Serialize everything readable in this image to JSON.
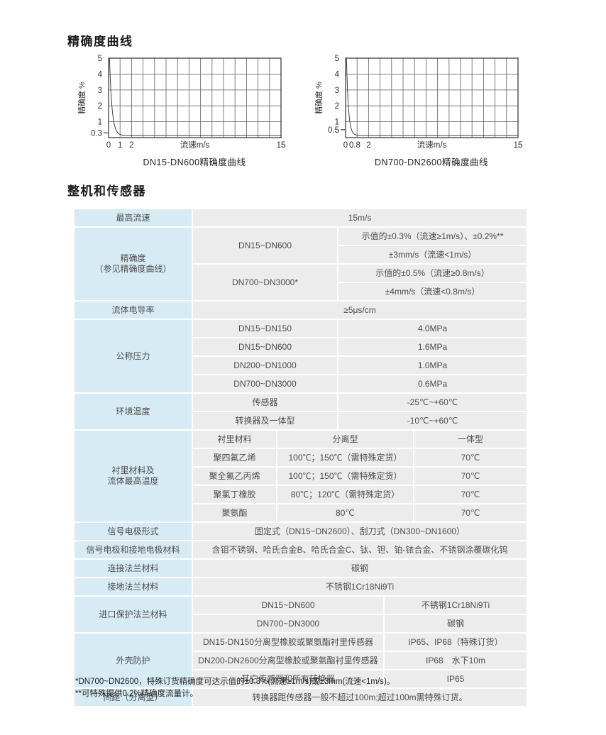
{
  "page": {
    "section1_title": "精确度曲线",
    "section2_title": "整机和传感器",
    "footnotes": [
      "*DN700~DN2600，特殊订货精确度可达示值的±0.3%(流速≥1m/s)或±3mm(流速<1m/s)。",
      "**可特殊提供0.2%精确度流量计。"
    ]
  },
  "colors": {
    "label_bg": "#d7ebf5",
    "cell_bg": "#ececec",
    "grid_line": "#6e6e6e",
    "axis_line": "#3f3f3f",
    "text": "#4d4d4d"
  },
  "chart_data": [
    {
      "type": "line",
      "title": "DN15-DN600精确度曲线",
      "xlabel": "流速m/s",
      "ylabel": "精确度  %",
      "xlim": [
        0,
        15
      ],
      "ylim": [
        0,
        5
      ],
      "grid": true,
      "x_ticks": [
        {
          "v": 0,
          "label": "0"
        },
        {
          "v": 1,
          "label": "1"
        },
        {
          "v": 2,
          "label": "2"
        },
        {
          "v": 15,
          "label": "15"
        }
      ],
      "y_ticks": [
        {
          "v": 5,
          "label": "5"
        },
        {
          "v": 4,
          "label": "4"
        },
        {
          "v": 3,
          "label": "3"
        },
        {
          "v": 2,
          "label": "2"
        },
        {
          "v": 1,
          "label": "1"
        },
        {
          "v": 0.3,
          "label": "0.3",
          "tick_only": true
        }
      ],
      "curve": {
        "shape": "decay",
        "start_x": 0.08,
        "knee_x": 1.0,
        "flat_y": 0.3
      }
    },
    {
      "type": "line",
      "title": "DN700-DN2600精确度曲线",
      "xlabel": "流速m/s",
      "ylabel": "精确度  %",
      "xlim": [
        0,
        15
      ],
      "ylim": [
        0,
        5
      ],
      "grid": true,
      "x_ticks": [
        {
          "v": 0,
          "label": "0"
        },
        {
          "v": 0.8,
          "label": "0.8"
        },
        {
          "v": 2,
          "label": "2"
        },
        {
          "v": 15,
          "label": "15"
        }
      ],
      "y_ticks": [
        {
          "v": 5,
          "label": "5"
        },
        {
          "v": 4,
          "label": "4"
        },
        {
          "v": 3,
          "label": "3"
        },
        {
          "v": 2,
          "label": "2"
        },
        {
          "v": 1,
          "label": "1"
        },
        {
          "v": 0.5,
          "label": "0.5",
          "tick_only": true
        }
      ],
      "curve": {
        "shape": "decay",
        "start_x": 0.08,
        "knee_x": 0.8,
        "flat_y": 0.5
      }
    }
  ],
  "table": {
    "groups": [
      {
        "label": "最高流速",
        "rows": [
          [
            {
              "t": "15m/s",
              "s": 5
            }
          ]
        ]
      },
      {
        "label": "精确度\n（参见精确度曲线）",
        "rows": [
          [
            {
              "t": "DN15~DN600",
              "s": 2,
              "r": 2
            },
            {
              "t": "示值的±0.3%（流速≥1m/s）、±0.2%**",
              "s": 3
            }
          ],
          [
            {
              "t": "±3mm/s（流速<1m/s）",
              "s": 3
            }
          ],
          [
            {
              "t": "DN700~DN3000*",
              "s": 2,
              "r": 2
            },
            {
              "t": "示值的±0.5%（流速≥0.8m/s）",
              "s": 3
            }
          ],
          [
            {
              "t": "±4mm/s（流速<0.8m/s）",
              "s": 3
            }
          ]
        ]
      },
      {
        "label": "流体电导率",
        "rows": [
          [
            {
              "t": "≥5μs/cm",
              "s": 5
            }
          ]
        ]
      },
      {
        "label": "公称压力",
        "rows": [
          [
            {
              "t": "DN15~DN150",
              "s": 2
            },
            {
              "t": "4.0MPa",
              "s": 3
            }
          ],
          [
            {
              "t": "DN15~DN600",
              "s": 2
            },
            {
              "t": "1.6MPa",
              "s": 3
            }
          ],
          [
            {
              "t": "DN200~DN1000",
              "s": 2
            },
            {
              "t": "1.0MPa",
              "s": 3
            }
          ],
          [
            {
              "t": "DN700~DN3000",
              "s": 2
            },
            {
              "t": "0.6MPa",
              "s": 3
            }
          ]
        ]
      },
      {
        "label": "环境温度",
        "rows": [
          [
            {
              "t": "传感器",
              "s": 2
            },
            {
              "t": "-25℃~+60℃",
              "s": 3
            }
          ],
          [
            {
              "t": "转换器及一体型",
              "s": 2
            },
            {
              "t": "-10℃~+60℃",
              "s": 3
            }
          ]
        ]
      },
      {
        "label": "衬里材料及\n流体最高温度",
        "rows": [
          [
            {
              "t": "衬里材料",
              "s": 1
            },
            {
              "t": "分离型",
              "s": 3
            },
            {
              "t": "一体型",
              "s": 1
            }
          ],
          [
            {
              "t": "聚四氟乙烯",
              "s": 1
            },
            {
              "t": "100℃；150℃（需特殊定货）",
              "s": 3
            },
            {
              "t": "70℃",
              "s": 1
            }
          ],
          [
            {
              "t": "聚全氟乙丙烯",
              "s": 1
            },
            {
              "t": "100℃；150℃（需特殊定货）",
              "s": 3
            },
            {
              "t": "70℃",
              "s": 1
            }
          ],
          [
            {
              "t": "聚氯丁橡胶",
              "s": 1
            },
            {
              "t": "80℃；120℃（需特殊定货）",
              "s": 3
            },
            {
              "t": "70℃",
              "s": 1
            }
          ],
          [
            {
              "t": "聚氨酯",
              "s": 1
            },
            {
              "t": "80℃",
              "s": 3
            },
            {
              "t": "70℃",
              "s": 1
            }
          ]
        ]
      },
      {
        "label": "信号电极形式",
        "rows": [
          [
            {
              "t": "固定式（DN15~DN2600）、刮刀式（DN300~DN1600）",
              "s": 5
            }
          ]
        ]
      },
      {
        "label": "信号电极和接地电极材料",
        "rows": [
          [
            {
              "t": "含钼不锈钢、哈氏合金B、哈氏合金C、钛、钽、铂-铱合金、不锈钢涂覆碳化钨",
              "s": 5
            }
          ]
        ]
      },
      {
        "label": "连接法兰材料",
        "rows": [
          [
            {
              "t": "碳钢",
              "s": 5
            }
          ]
        ]
      },
      {
        "label": "接地法兰材料",
        "rows": [
          [
            {
              "t": "不锈钢1Cr18Ni9Ti",
              "s": 5
            }
          ]
        ]
      },
      {
        "label": "进口保护法兰材料",
        "rows": [
          [
            {
              "t": "DN15~DN600",
              "s": 3
            },
            {
              "t": "不锈钢1Cr18Ni9Ti",
              "s": 2
            }
          ],
          [
            {
              "t": "DN700~DN3000",
              "s": 3
            },
            {
              "t": "碳钢",
              "s": 2
            }
          ]
        ]
      },
      {
        "label": "外壳防护",
        "rows": [
          [
            {
              "t": "DN15-DN150分离型橡胶或聚氨酯衬里传感器",
              "s": 3
            },
            {
              "t": "IP65、IP68（特殊订货）",
              "s": 2
            }
          ],
          [
            {
              "t": "DN200-DN2600分离型橡胶或聚氨酯衬里传感器",
              "s": 3
            },
            {
              "t": "IP68　水下10m",
              "s": 2
            }
          ],
          [
            {
              "t": "其它传感器和所有转换器",
              "s": 3
            },
            {
              "t": "IP65",
              "s": 2
            }
          ]
        ]
      },
      {
        "label": "间距（分离型）",
        "rows": [
          [
            {
              "t": "转换器距传感器一般不超过100m;超过100m需特殊订货。",
              "s": 5
            }
          ]
        ]
      }
    ]
  }
}
